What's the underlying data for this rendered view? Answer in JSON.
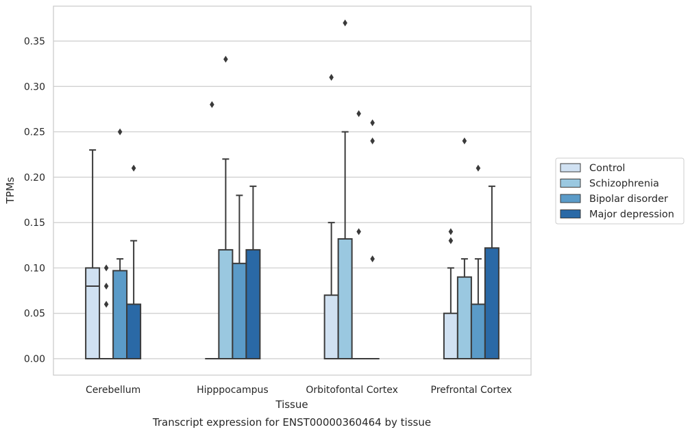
{
  "chart_data": {
    "type": "box",
    "title": "Transcript expression for ENST00000360464 by tissue",
    "xlabel": "Tissue",
    "ylabel": "TPMs",
    "ylim": [
      -0.018,
      0.388
    ],
    "yticks": [
      "0.00",
      "0.05",
      "0.10",
      "0.15",
      "0.20",
      "0.25",
      "0.30",
      "0.35"
    ],
    "grid": true,
    "legend_position": "right",
    "categories": [
      "Cerebellum",
      "Hipppocampus",
      "Orbitofontal Cortex",
      "Prefrontal Cortex"
    ],
    "series": [
      {
        "name": "Control",
        "color": "#d0e1f2",
        "boxes": [
          {
            "q1": 0.0,
            "median": 0.08,
            "q3": 0.1,
            "whisker_low": 0.0,
            "whisker_high": 0.23,
            "outliers": []
          },
          {
            "q1": 0.0,
            "median": 0.0,
            "q3": 0.0,
            "whisker_low": 0.0,
            "whisker_high": 0.0,
            "outliers": [
              0.28
            ]
          },
          {
            "q1": 0.0,
            "median": 0.0,
            "q3": 0.07,
            "whisker_low": 0.0,
            "whisker_high": 0.15,
            "outliers": [
              0.31
            ]
          },
          {
            "q1": 0.0,
            "median": 0.0,
            "q3": 0.05,
            "whisker_low": 0.0,
            "whisker_high": 0.1,
            "outliers": [
              0.13,
              0.14
            ]
          }
        ]
      },
      {
        "name": "Schizophrenia",
        "color": "#9ac8e0",
        "boxes": [
          {
            "q1": 0.0,
            "median": 0.0,
            "q3": 0.0,
            "whisker_low": 0.0,
            "whisker_high": 0.0,
            "outliers": [
              0.06,
              0.08,
              0.1
            ]
          },
          {
            "q1": 0.0,
            "median": 0.0,
            "q3": 0.12,
            "whisker_low": 0.0,
            "whisker_high": 0.22,
            "outliers": [
              0.33
            ]
          },
          {
            "q1": 0.0,
            "median": 0.0,
            "q3": 0.132,
            "whisker_low": 0.0,
            "whisker_high": 0.25,
            "outliers": [
              0.37
            ]
          },
          {
            "q1": 0.0,
            "median": 0.0,
            "q3": 0.09,
            "whisker_low": 0.0,
            "whisker_high": 0.11,
            "outliers": [
              0.24
            ]
          }
        ]
      },
      {
        "name": "Bipolar disorder",
        "color": "#5b9bc8",
        "boxes": [
          {
            "q1": 0.0,
            "median": 0.0,
            "q3": 0.097,
            "whisker_low": 0.0,
            "whisker_high": 0.11,
            "outliers": [
              0.25
            ]
          },
          {
            "q1": 0.0,
            "median": 0.0,
            "q3": 0.105,
            "whisker_low": 0.0,
            "whisker_high": 0.18,
            "outliers": []
          },
          {
            "q1": 0.0,
            "median": 0.0,
            "q3": 0.0,
            "whisker_low": 0.0,
            "whisker_high": 0.0,
            "outliers": [
              0.14,
              0.27
            ]
          },
          {
            "q1": 0.0,
            "median": 0.0,
            "q3": 0.06,
            "whisker_low": 0.0,
            "whisker_high": 0.11,
            "outliers": [
              0.21
            ]
          }
        ]
      },
      {
        "name": "Major depression",
        "color": "#2a69a6",
        "boxes": [
          {
            "q1": 0.0,
            "median": 0.0,
            "q3": 0.06,
            "whisker_low": 0.0,
            "whisker_high": 0.13,
            "outliers": [
              0.21
            ]
          },
          {
            "q1": 0.0,
            "median": 0.0,
            "q3": 0.12,
            "whisker_low": 0.0,
            "whisker_high": 0.19,
            "outliers": []
          },
          {
            "q1": 0.0,
            "median": 0.0,
            "q3": 0.0,
            "whisker_low": 0.0,
            "whisker_high": 0.0,
            "outliers": [
              0.11,
              0.24,
              0.26
            ]
          },
          {
            "q1": 0.0,
            "median": 0.0,
            "q3": 0.122,
            "whisker_low": 0.0,
            "whisker_high": 0.19,
            "outliers": []
          }
        ]
      }
    ]
  }
}
